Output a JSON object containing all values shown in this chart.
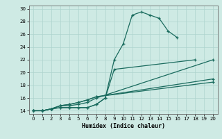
{
  "xlabel": "Humidex (Indice chaleur)",
  "background_color": "#ceeae4",
  "grid_color": "#aed4ce",
  "line_color": "#1a6b5e",
  "xlim": [
    -0.5,
    20.5
  ],
  "ylim": [
    13.5,
    30.5
  ],
  "xticks": [
    0,
    1,
    2,
    3,
    4,
    5,
    6,
    7,
    8,
    9,
    10,
    11,
    12,
    13,
    14,
    15,
    16,
    17,
    18,
    19,
    20
  ],
  "yticks": [
    14,
    16,
    18,
    20,
    22,
    24,
    26,
    28,
    30
  ],
  "line1_x": [
    0,
    1,
    2,
    3,
    4,
    5,
    6,
    7,
    8,
    9,
    10,
    11,
    12,
    13,
    14,
    15,
    16
  ],
  "line1_y": [
    14,
    14,
    14.3,
    14.5,
    14.5,
    14.5,
    14.5,
    15,
    16,
    22,
    24.5,
    29,
    29.5,
    29,
    28.5,
    26.5,
    25.5
  ],
  "line2_x": [
    0,
    1,
    2,
    3,
    4,
    5,
    6,
    7,
    8,
    9,
    18
  ],
  "line2_y": [
    14,
    14,
    14.3,
    14.5,
    14.5,
    14.5,
    14.5,
    15,
    16,
    20.5,
    22
  ],
  "line3_x": [
    0,
    1,
    2,
    3,
    4,
    5,
    6,
    7,
    20
  ],
  "line3_y": [
    14,
    14,
    14.3,
    14.8,
    14.8,
    15.0,
    15.3,
    16,
    22
  ],
  "line4_x": [
    0,
    1,
    2,
    3,
    4,
    5,
    6,
    7,
    20
  ],
  "line4_y": [
    14,
    14,
    14.3,
    14.8,
    15.0,
    15.3,
    15.7,
    16.2,
    19.0
  ],
  "line5_x": [
    0,
    1,
    2,
    3,
    4,
    5,
    6,
    7,
    20
  ],
  "line5_y": [
    14,
    14,
    14.3,
    14.8,
    15.0,
    15.3,
    15.7,
    16.2,
    18.5
  ]
}
